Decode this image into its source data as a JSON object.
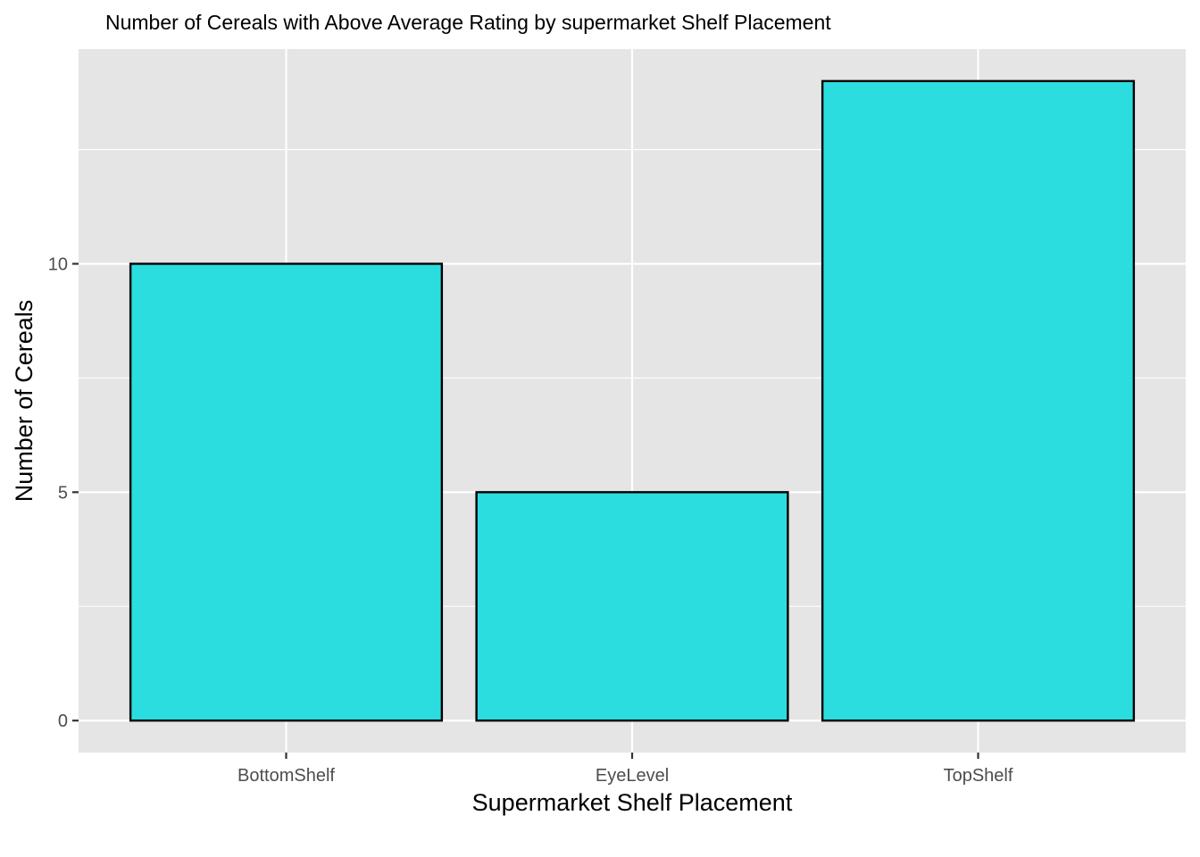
{
  "chart_data": {
    "type": "bar",
    "title": "Number of Cereals with Above Average Rating by supermarket Shelf Placement",
    "xlabel": "Supermarket Shelf Placement",
    "ylabel": "Number of Cereals",
    "categories": [
      "BottomShelf",
      "EyeLevel",
      "TopShelf"
    ],
    "values": [
      10,
      5,
      14
    ],
    "ylim": [
      -0.7,
      14.7
    ],
    "yticks": [
      0,
      5,
      10
    ],
    "grid": true,
    "colors": {
      "bar_fill": "#2CDDE0",
      "bar_outline": "#000000",
      "panel_background": "#E5E5E5",
      "grid": "#FFFFFF"
    }
  }
}
